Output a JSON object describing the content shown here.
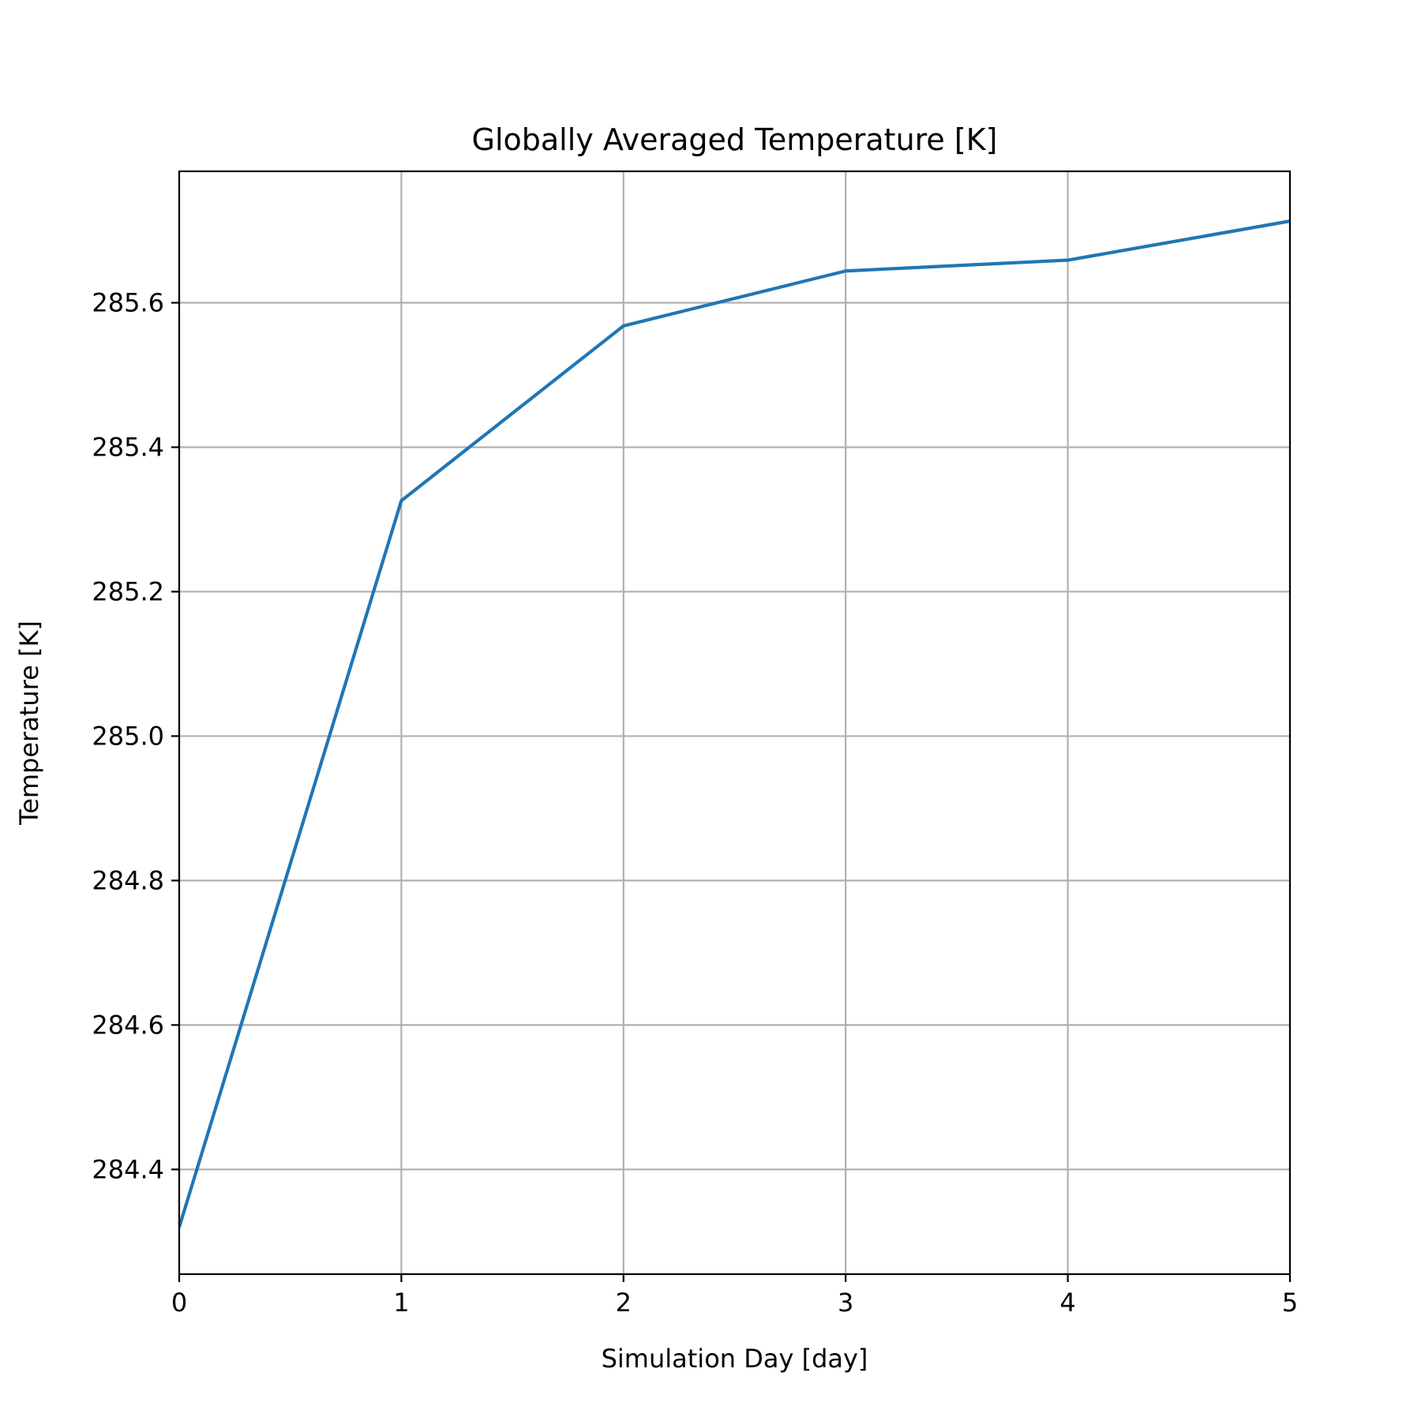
{
  "chart_data": {
    "type": "line",
    "title": "Globally Averaged Temperature [K]",
    "xlabel": "Simulation Day [day]",
    "ylabel": "Temperature [K]",
    "xlim": [
      0,
      5
    ],
    "ylim": [
      284.255,
      285.782
    ],
    "x_ticks": [
      "0",
      "1",
      "2",
      "3",
      "4",
      "5"
    ],
    "y_ticks": [
      "284.4",
      "284.6",
      "284.8",
      "285.0",
      "285.2",
      "285.4",
      "285.6"
    ],
    "grid": true,
    "series": [
      {
        "x": [
          0,
          1,
          2,
          3,
          4,
          5
        ],
        "y": [
          284.32,
          285.326,
          285.568,
          285.644,
          285.659,
          285.713
        ],
        "color": "#1f77b4"
      }
    ]
  }
}
